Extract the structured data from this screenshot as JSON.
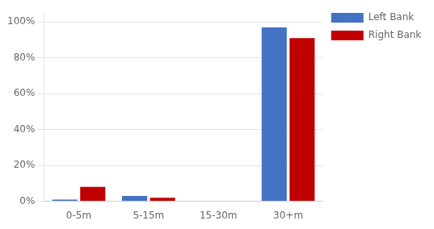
{
  "chart_data": {
    "type": "bar",
    "categories": [
      "0-5m",
      "5-15m",
      "15-30m",
      "30+m"
    ],
    "series": [
      {
        "name": "Left Bank",
        "color": "#4472C4",
        "values": [
          0.01,
          0.03,
          0.0,
          0.97
        ]
      },
      {
        "name": "Right Bank",
        "color": "#C00000",
        "values": [
          0.08,
          0.02,
          0.0,
          0.91
        ]
      }
    ],
    "ylim": [
      0,
      1.05
    ],
    "yticks": [
      {
        "value": 0,
        "label": "0%"
      },
      {
        "value": 0.2,
        "label": "20%"
      },
      {
        "value": 0.4,
        "label": "40%"
      },
      {
        "value": 0.6,
        "label": "60%"
      },
      {
        "value": 0.8,
        "label": "80%"
      },
      {
        "value": 1.0,
        "label": "100%"
      }
    ],
    "grid": true,
    "legend": "right"
  }
}
